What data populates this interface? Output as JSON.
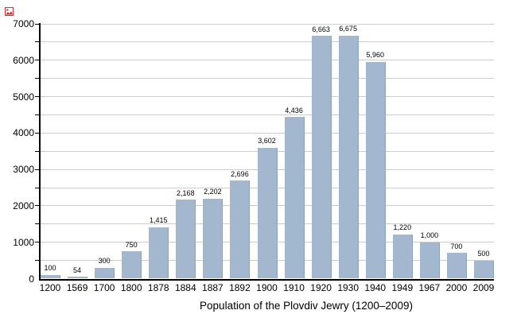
{
  "chart_data": {
    "type": "bar",
    "title": "Population of the Plovdiv Jewry (1200–2009)",
    "categories": [
      "1200",
      "1569",
      "1700",
      "1800",
      "1878",
      "1884",
      "1887",
      "1892",
      "1900",
      "1910",
      "1920",
      "1930",
      "1940",
      "1949",
      "1967",
      "2000",
      "2009"
    ],
    "values": [
      100,
      54,
      300,
      750,
      1415,
      2168,
      2202,
      2696,
      3602,
      4436,
      6663,
      6675,
      5960,
      1220,
      1000,
      700,
      500
    ],
    "value_labels": [
      "100",
      "54",
      "300",
      "750",
      "1,415",
      "2,168",
      "2,202",
      "2,696",
      "3,602",
      "4,436",
      "6,663",
      "6,675",
      "5,960",
      "1,220",
      "1,000",
      "700",
      "500"
    ],
    "xlabel": "",
    "ylabel": "",
    "ylim": [
      0,
      7000
    ],
    "y_major_interval": 1000,
    "y_minor_interval": 500,
    "y_tick_labels": [
      "0",
      "1000",
      "2000",
      "3000",
      "4000",
      "5000",
      "6000",
      "7000"
    ],
    "grid": true,
    "legend": false,
    "colors": {
      "bar_fill": "#a3b8ce",
      "bar_edge": "#8ba2b9",
      "gridline": "#cbcbcb",
      "axis": "#000000",
      "text": "#000000",
      "marker_red": "#cc3333"
    },
    "icons": [
      {
        "name": "broken-image-icon",
        "color": "#cc3333"
      }
    ]
  }
}
